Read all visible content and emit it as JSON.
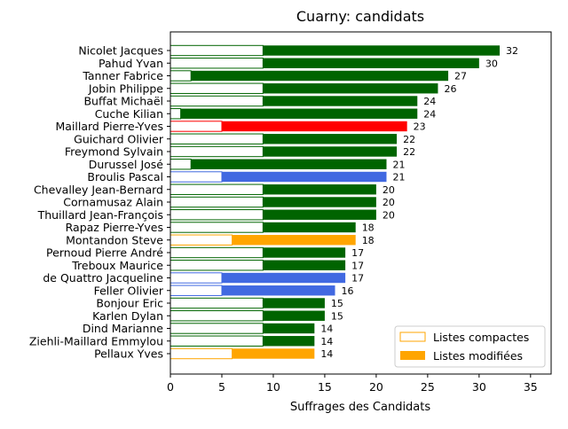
{
  "chart_data": {
    "type": "bar",
    "orientation": "horizontal",
    "title": "Cuarny: candidats",
    "xlabel": "Suffrages des Candidats",
    "ylabel": "",
    "xlim": [
      0,
      37
    ],
    "xticks": [
      0,
      5,
      10,
      15,
      20,
      25,
      30,
      35
    ],
    "legend": {
      "placement": "bottom-right",
      "entries": [
        "Listes compactes",
        "Listes modifiées"
      ]
    },
    "candidates": [
      {
        "name": "Nicolet Jacques",
        "total": 32,
        "compact": 9,
        "color": "#006400"
      },
      {
        "name": "Pahud Yvan",
        "total": 30,
        "compact": 9,
        "color": "#006400"
      },
      {
        "name": "Tanner Fabrice",
        "total": 27,
        "compact": 2,
        "color": "#006400"
      },
      {
        "name": "Jobin Philippe",
        "total": 26,
        "compact": 9,
        "color": "#006400"
      },
      {
        "name": "Buffat Michaël",
        "total": 24,
        "compact": 9,
        "color": "#006400"
      },
      {
        "name": "Cuche Kilian",
        "total": 24,
        "compact": 1,
        "color": "#006400"
      },
      {
        "name": "Maillard Pierre-Yves",
        "total": 23,
        "compact": 5,
        "color": "#ff0000"
      },
      {
        "name": "Guichard Olivier",
        "total": 22,
        "compact": 9,
        "color": "#006400"
      },
      {
        "name": "Freymond Sylvain",
        "total": 22,
        "compact": 9,
        "color": "#006400"
      },
      {
        "name": "Durussel José",
        "total": 21,
        "compact": 2,
        "color": "#006400"
      },
      {
        "name": "Broulis Pascal",
        "total": 21,
        "compact": 5,
        "color": "#4169e1"
      },
      {
        "name": "Chevalley Jean-Bernard",
        "total": 20,
        "compact": 9,
        "color": "#006400"
      },
      {
        "name": "Cornamusaz Alain",
        "total": 20,
        "compact": 9,
        "color": "#006400"
      },
      {
        "name": "Thuillard Jean-François",
        "total": 20,
        "compact": 9,
        "color": "#006400"
      },
      {
        "name": "Rapaz Pierre-Yves",
        "total": 18,
        "compact": 9,
        "color": "#006400"
      },
      {
        "name": "Montandon Steve",
        "total": 18,
        "compact": 6,
        "color": "#ffa500"
      },
      {
        "name": "Pernoud Pierre André",
        "total": 17,
        "compact": 9,
        "color": "#006400"
      },
      {
        "name": "Treboux Maurice",
        "total": 17,
        "compact": 9,
        "color": "#006400"
      },
      {
        "name": "de Quattro Jacqueline",
        "total": 17,
        "compact": 5,
        "color": "#4169e1"
      },
      {
        "name": "Feller Olivier",
        "total": 16,
        "compact": 5,
        "color": "#4169e1"
      },
      {
        "name": "Bonjour Eric",
        "total": 15,
        "compact": 9,
        "color": "#006400"
      },
      {
        "name": "Karlen Dylan",
        "total": 15,
        "compact": 9,
        "color": "#006400"
      },
      {
        "name": "Dind Marianne",
        "total": 14,
        "compact": 9,
        "color": "#006400"
      },
      {
        "name": "Ziehli-Maillard Emmylou",
        "total": 14,
        "compact": 9,
        "color": "#006400"
      },
      {
        "name": "Pellaux Yves",
        "total": 14,
        "compact": 6,
        "color": "#ffa500"
      }
    ]
  }
}
